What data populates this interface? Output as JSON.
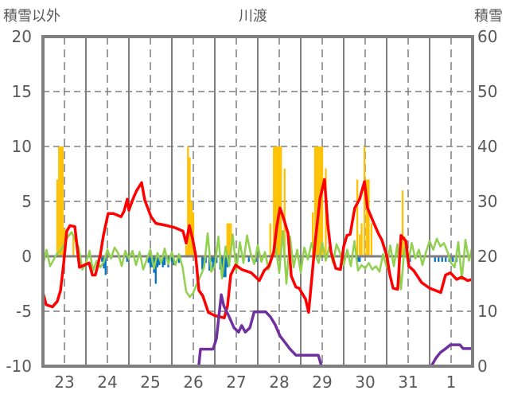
{
  "chart_data": {
    "type": "combo",
    "title": "川渡",
    "ylabel_left": "積雪以外",
    "ylabel_right": "積雪",
    "ylim_left": [
      -10,
      20
    ],
    "ylim_right": [
      0,
      60
    ],
    "yticks_left": [
      "20",
      "15",
      "10",
      "5",
      "0",
      "-5",
      "-10"
    ],
    "yticks_right": [
      "60",
      "50",
      "40",
      "30",
      "20",
      "10",
      "0"
    ],
    "x_unit": "hours from start of day 23",
    "xlim": [
      0,
      240
    ],
    "xtick_labels": [
      "23",
      "24",
      "25",
      "26",
      "27",
      "28",
      "29",
      "30",
      "31",
      "1"
    ],
    "grid": true,
    "colors": {
      "red": "#ff0000",
      "green": "#92d050",
      "purple": "#7030a0",
      "orange": "#ffc000",
      "blue": "#0070c0",
      "axis": "#7f7f7f"
    },
    "series": [
      {
        "name": "red-line",
        "axis": "left",
        "points": [
          [
            0,
            -3.3
          ],
          [
            1.8,
            -4.4
          ],
          [
            5.3,
            -4.6
          ],
          [
            8,
            -4.1
          ],
          [
            9.8,
            -3.1
          ],
          [
            11.6,
            -0.6
          ],
          [
            13.3,
            2.3
          ],
          [
            15.1,
            2.8
          ],
          [
            17.8,
            2.7
          ],
          [
            19.6,
            0.1
          ],
          [
            20.4,
            -1
          ],
          [
            23.1,
            -0.8
          ],
          [
            25.8,
            -0.6
          ],
          [
            27.6,
            -1.7
          ],
          [
            29.3,
            -1.7
          ],
          [
            32,
            0.1
          ],
          [
            33.8,
            1.9
          ],
          [
            36.4,
            3.9
          ],
          [
            39.1,
            3.9
          ],
          [
            40.9,
            3.8
          ],
          [
            43.6,
            3.6
          ],
          [
            45.3,
            4.1
          ],
          [
            47.1,
            5.2
          ],
          [
            48,
            4.2
          ],
          [
            50.7,
            5.4
          ],
          [
            52.4,
            6
          ],
          [
            55.1,
            6.7
          ],
          [
            56.9,
            5.1
          ],
          [
            60.4,
            3.6
          ],
          [
            63.1,
            3
          ],
          [
            69.3,
            2.8
          ],
          [
            73.8,
            2.6
          ],
          [
            78.2,
            2.3
          ],
          [
            80,
            1.2
          ],
          [
            81.8,
            2.8
          ],
          [
            83.6,
            1.6
          ],
          [
            85.3,
            0.1
          ],
          [
            87.1,
            -3.1
          ],
          [
            89.3,
            -3.6
          ],
          [
            92.4,
            -5.1
          ],
          [
            96,
            -5.4
          ],
          [
            101.3,
            -5.6
          ],
          [
            103.1,
            -4.5
          ],
          [
            104.9,
            -1.7
          ],
          [
            107.6,
            -0.8
          ],
          [
            111.1,
            -1.2
          ],
          [
            116.4,
            -1.5
          ],
          [
            120.9,
            -2.2
          ],
          [
            123.6,
            -1.3
          ],
          [
            126.2,
            -0.9
          ],
          [
            128.9,
            0.4
          ],
          [
            130.7,
            2.8
          ],
          [
            132.4,
            4.4
          ],
          [
            134.2,
            3.6
          ],
          [
            136.9,
            2.1
          ],
          [
            138.7,
            -1.8
          ],
          [
            141.3,
            -2.8
          ],
          [
            143.1,
            -2.9
          ],
          [
            144.9,
            -3.4
          ],
          [
            146.7,
            -3.9
          ],
          [
            148.4,
            -5.1
          ],
          [
            150.2,
            -2
          ],
          [
            152,
            1.2
          ],
          [
            154.7,
            5.2
          ],
          [
            157.3,
            7
          ],
          [
            159.1,
            2.9
          ],
          [
            160.9,
            0.4
          ],
          [
            163.6,
            -1.1
          ],
          [
            166.2,
            -1.2
          ],
          [
            168,
            0.9
          ],
          [
            169.8,
            1.9
          ],
          [
            171.6,
            2
          ],
          [
            174.2,
            4.4
          ],
          [
            176.9,
            5.2
          ],
          [
            179.6,
            6.8
          ],
          [
            181.3,
            4.4
          ],
          [
            184.9,
            3
          ],
          [
            187.6,
            2
          ],
          [
            189.3,
            1.5
          ],
          [
            192,
            0.1
          ],
          [
            193.8,
            -1.7
          ],
          [
            195.6,
            -2.9
          ],
          [
            198.2,
            -3
          ],
          [
            200,
            1.9
          ],
          [
            202.7,
            1.4
          ],
          [
            204.4,
            -0.9
          ],
          [
            207.1,
            -1.3
          ],
          [
            211.6,
            -2.4
          ],
          [
            216,
            -2.9
          ],
          [
            222.2,
            -3.3
          ],
          [
            224.9,
            -1.7
          ],
          [
            227.6,
            -1.5
          ],
          [
            231.1,
            -2.1
          ],
          [
            233.8,
            -1.9
          ],
          [
            237.3,
            -2.2
          ],
          [
            239.6,
            -2.1
          ]
        ]
      },
      {
        "name": "green-line",
        "axis": "left",
        "start": 0,
        "step": 2,
        "values": [
          -0.8,
          0.6,
          -0.9,
          -0.3,
          0.3,
          0.5,
          1.2,
          1.8,
          2.2,
          1.5,
          0.8,
          -1.2,
          -0.6,
          0.5,
          -1.3,
          -0.4,
          -1.0,
          -0.5,
          0.6,
          -0.2,
          0.8,
          0.3,
          -0.9,
          0.5,
          -0.2,
          0.5,
          -0.8,
          0.4,
          -1.2,
          -0.3,
          0.6,
          -1.1,
          0.3,
          -0.6,
          0.7,
          -0.7,
          0.4,
          -0.8,
          0.2,
          -1.0,
          -3.2,
          -3.7,
          -3.3,
          -2.5,
          -1.8,
          -1.0,
          2.1,
          -1.4,
          -0.9,
          1.8,
          -2.0,
          0.9,
          -0.9,
          2.0,
          -1.3,
          1.3,
          -0.6,
          1.9,
          0.3,
          -0.7,
          1.0,
          -0.5,
          0.4,
          -1.2,
          -0.2,
          0.9,
          -1.5,
          2.3,
          -2.5,
          1.8,
          -1.0,
          0.6,
          -1.5,
          0.8,
          -0.3,
          1.2,
          0.2,
          -0.6,
          1.3,
          -0.4,
          0.9,
          -0.6,
          1.1,
          0.3,
          -0.8,
          0.6,
          -0.9,
          1.4,
          -1.3,
          -0.8,
          -1.1,
          -0.6,
          -1.2,
          -0.9,
          -1.4,
          0.2,
          -1.0,
          1.0,
          -0.9,
          1.1,
          -3.0,
          0.8,
          -0.6,
          1.2,
          -0.2,
          0.6,
          -0.8,
          0.4,
          1.4,
          0.6,
          1.6,
          0.9,
          1.2,
          0.4,
          -0.6,
          -1.0,
          1.3,
          -2.1,
          1.5,
          -0.4,
          1.0
        ]
      },
      {
        "name": "purple-line-snow-depth",
        "axis": "right",
        "points": [
          [
            0,
            0
          ],
          [
            87,
            0
          ],
          [
            88,
            3.1
          ],
          [
            95,
            3.1
          ],
          [
            96.9,
            5
          ],
          [
            99.6,
            13
          ],
          [
            101,
            11
          ],
          [
            104,
            9
          ],
          [
            106.7,
            7
          ],
          [
            109.3,
            6.2
          ],
          [
            111,
            7.4
          ],
          [
            113,
            6.2
          ],
          [
            115.6,
            7
          ],
          [
            118,
            9.9
          ],
          [
            124.4,
            9.9
          ],
          [
            127,
            9
          ],
          [
            129.8,
            7.5
          ],
          [
            132.4,
            5.5
          ],
          [
            135,
            4.4
          ],
          [
            137.8,
            3.2
          ],
          [
            141.3,
            2
          ],
          [
            153.8,
            2
          ],
          [
            155.6,
            0
          ],
          [
            216.9,
            0
          ],
          [
            219.6,
            1.5
          ],
          [
            222,
            2.5
          ],
          [
            225,
            3.2
          ],
          [
            227.6,
            3.9
          ],
          [
            232.9,
            3.9
          ],
          [
            234.7,
            3.2
          ],
          [
            240,
            3.2
          ]
        ]
      },
      {
        "name": "orange-bars",
        "axis": "left",
        "points": [
          [
            8,
            7
          ],
          [
            9,
            10
          ],
          [
            10,
            10
          ],
          [
            11,
            10
          ],
          [
            12,
            2.5
          ],
          [
            17,
            2
          ],
          [
            80,
            1
          ],
          [
            81,
            10
          ],
          [
            82,
            9
          ],
          [
            83,
            5
          ],
          [
            84,
            4
          ],
          [
            103,
            3
          ],
          [
            104,
            3
          ],
          [
            105,
            3
          ],
          [
            127,
            3
          ],
          [
            129,
            10
          ],
          [
            130,
            10
          ],
          [
            131,
            10
          ],
          [
            132,
            10
          ],
          [
            133,
            10
          ],
          [
            135,
            8
          ],
          [
            150.7,
            4
          ],
          [
            152,
            10
          ],
          [
            153,
            10
          ],
          [
            154,
            10
          ],
          [
            155,
            10
          ],
          [
            156,
            10
          ],
          [
            158,
            8
          ],
          [
            175.6,
            7
          ],
          [
            177,
            2
          ],
          [
            178,
            3
          ],
          [
            179.6,
            10
          ],
          [
            181,
            7
          ],
          [
            182,
            7
          ],
          [
            183.5,
            3
          ],
          [
            200,
            1.8
          ],
          [
            200.9,
            6
          ],
          [
            202,
            1.8
          ]
        ]
      },
      {
        "name": "blue-bars",
        "axis": "left",
        "points": [
          [
            33,
            -0.5
          ],
          [
            34,
            -1.1
          ],
          [
            35,
            -1.7
          ],
          [
            47,
            -0.5
          ],
          [
            59,
            -0.6
          ],
          [
            60,
            -1
          ],
          [
            61,
            -1
          ],
          [
            62,
            -1.5
          ],
          [
            63,
            -2.5
          ],
          [
            64,
            -1
          ],
          [
            65,
            -0.8
          ],
          [
            67,
            -1
          ],
          [
            68,
            -0.8
          ],
          [
            70,
            -1
          ],
          [
            72,
            -0.5
          ],
          [
            73,
            -0.8
          ],
          [
            76,
            -0.6
          ],
          [
            89,
            -1.2
          ],
          [
            90,
            -1
          ],
          [
            91,
            -0.6
          ],
          [
            93,
            -1.3
          ],
          [
            94,
            -0.5
          ],
          [
            95,
            -1.1
          ],
          [
            96,
            -0.6
          ],
          [
            97,
            -0.6
          ],
          [
            99,
            -1.2
          ],
          [
            100,
            -1.4
          ],
          [
            101,
            -1.9
          ],
          [
            102,
            -1.9
          ],
          [
            103,
            -1
          ],
          [
            104,
            -0.5
          ],
          [
            115,
            -0.5
          ],
          [
            119,
            -0.5
          ],
          [
            176,
            -0.5
          ],
          [
            177,
            -0.5
          ],
          [
            205,
            -0.5
          ],
          [
            219,
            -0.5
          ],
          [
            221,
            -0.5
          ],
          [
            223,
            -0.5
          ],
          [
            225,
            -0.5
          ],
          [
            227,
            -0.5
          ],
          [
            229,
            -0.5
          ],
          [
            231,
            -0.5
          ]
        ]
      }
    ]
  }
}
